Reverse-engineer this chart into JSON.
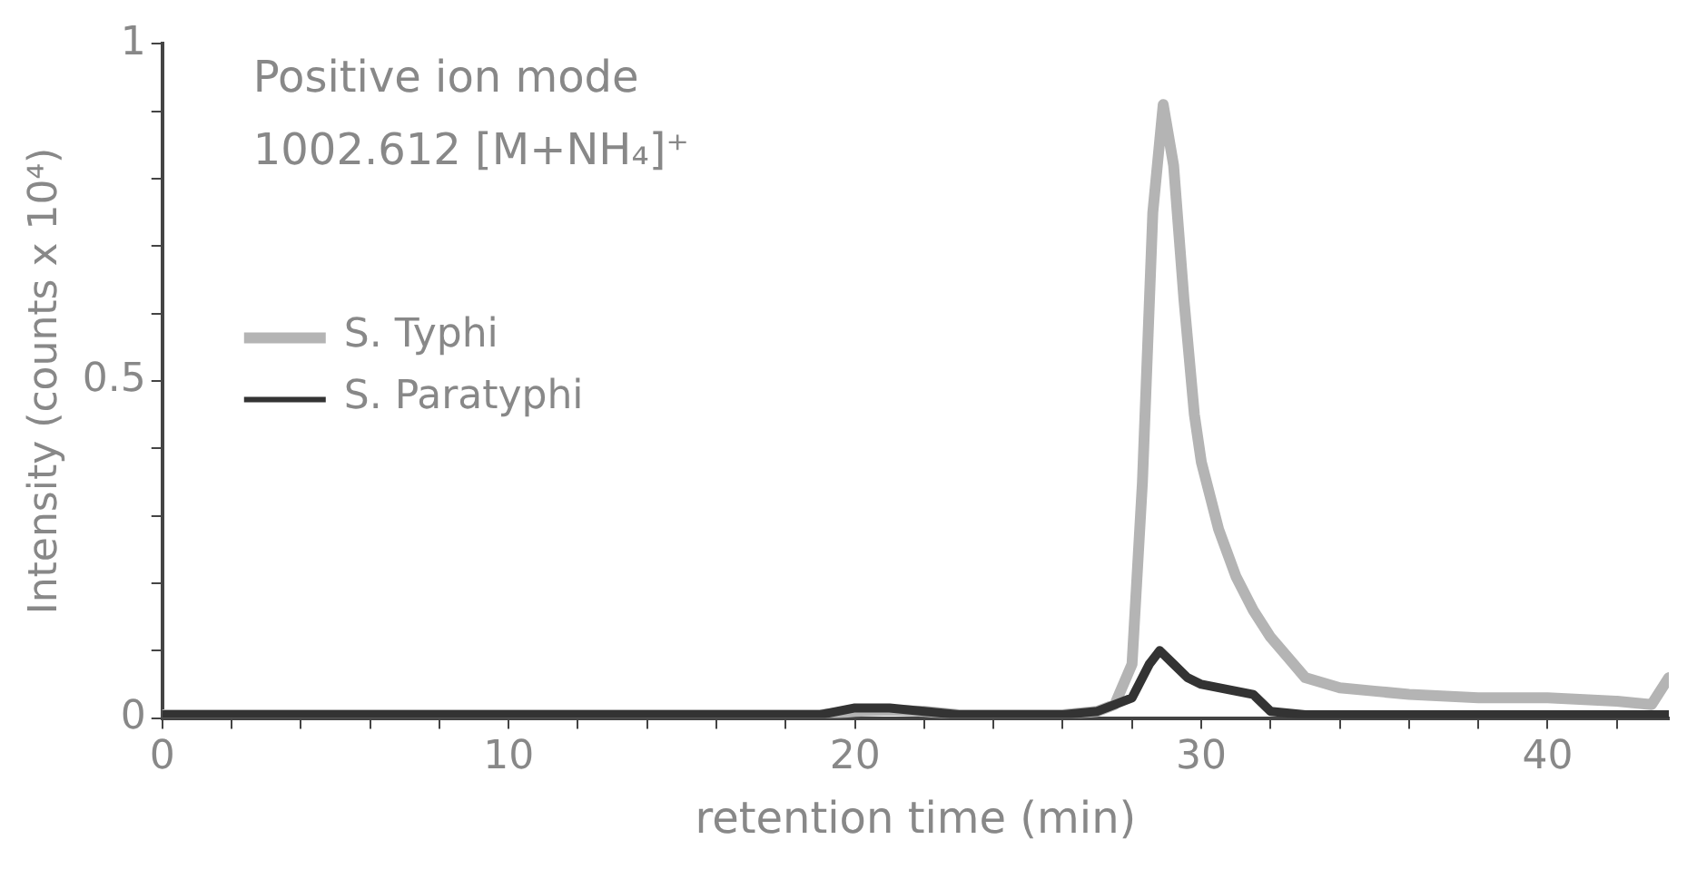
{
  "chart_data": {
    "type": "line",
    "xlabel": "retention time (min)",
    "ylabel": "Intensity (counts x 10⁴)",
    "annotations": [
      "Positive ion mode",
      "1002.612 [M+NH₄]⁺"
    ],
    "xlim": [
      0,
      43.5
    ],
    "ylim": [
      0,
      1
    ],
    "xticks": [
      0,
      {
        "value": 2,
        "label": null
      },
      {
        "value": 4,
        "label": null
      },
      {
        "value": 6,
        "label": null
      },
      {
        "value": 8,
        "label": null
      },
      10,
      {
        "value": 12,
        "label": null
      },
      {
        "value": 14,
        "label": null
      },
      {
        "value": 16,
        "label": null
      },
      {
        "value": 18,
        "label": null
      },
      20,
      {
        "value": 22,
        "label": null
      },
      {
        "value": 24,
        "label": null
      },
      {
        "value": 26,
        "label": null
      },
      {
        "value": 28,
        "label": null
      },
      30,
      {
        "value": 32,
        "label": null
      },
      {
        "value": 34,
        "label": null
      },
      {
        "value": 36,
        "label": null
      },
      {
        "value": 38,
        "label": null
      },
      40,
      {
        "value": 42,
        "label": null
      }
    ],
    "yticks": [
      0,
      {
        "value": 0.1,
        "label": null
      },
      {
        "value": 0.2,
        "label": null
      },
      {
        "value": 0.3,
        "label": null
      },
      {
        "value": 0.4,
        "label": null
      },
      0.5,
      {
        "value": 0.6,
        "label": null
      },
      {
        "value": 0.7,
        "label": null
      },
      {
        "value": 0.8,
        "label": null
      },
      {
        "value": 0.9,
        "label": null
      },
      1
    ],
    "grid": false,
    "legend": "top left",
    "marker": "none",
    "line_style": "solid",
    "series": [
      {
        "name": "S. Typhi",
        "color": "#b4b4b4",
        "x": [
          0,
          4,
          8,
          12,
          16,
          19,
          20,
          21,
          22,
          23,
          26,
          27,
          27.5,
          28,
          28.3,
          28.6,
          28.9,
          29.2,
          29.5,
          29.8,
          30,
          30.5,
          31,
          31.5,
          32,
          32.5,
          33,
          34,
          35,
          36,
          38,
          40,
          42,
          43,
          43.5
        ],
        "values": [
          0.005,
          0.005,
          0.005,
          0.005,
          0.005,
          0.005,
          0.01,
          0.012,
          0.01,
          0.005,
          0.005,
          0.01,
          0.02,
          0.08,
          0.35,
          0.75,
          0.91,
          0.82,
          0.62,
          0.45,
          0.38,
          0.28,
          0.21,
          0.16,
          0.12,
          0.09,
          0.06,
          0.045,
          0.04,
          0.035,
          0.03,
          0.03,
          0.025,
          0.02,
          0.06
        ]
      },
      {
        "name": "S. Paratyphi",
        "color": "#333333",
        "x": [
          0,
          4,
          8,
          12,
          16,
          19,
          20,
          21,
          22,
          23,
          26,
          27,
          28,
          28.5,
          28.8,
          29.2,
          29.6,
          30,
          30.5,
          31,
          31.5,
          32,
          33,
          36,
          40,
          43.5
        ],
        "values": [
          0.005,
          0.005,
          0.005,
          0.005,
          0.005,
          0.005,
          0.015,
          0.015,
          0.01,
          0.005,
          0.005,
          0.01,
          0.03,
          0.08,
          0.1,
          0.08,
          0.06,
          0.05,
          0.045,
          0.04,
          0.035,
          0.01,
          0.005,
          0.005,
          0.005,
          0.005
        ]
      }
    ]
  }
}
